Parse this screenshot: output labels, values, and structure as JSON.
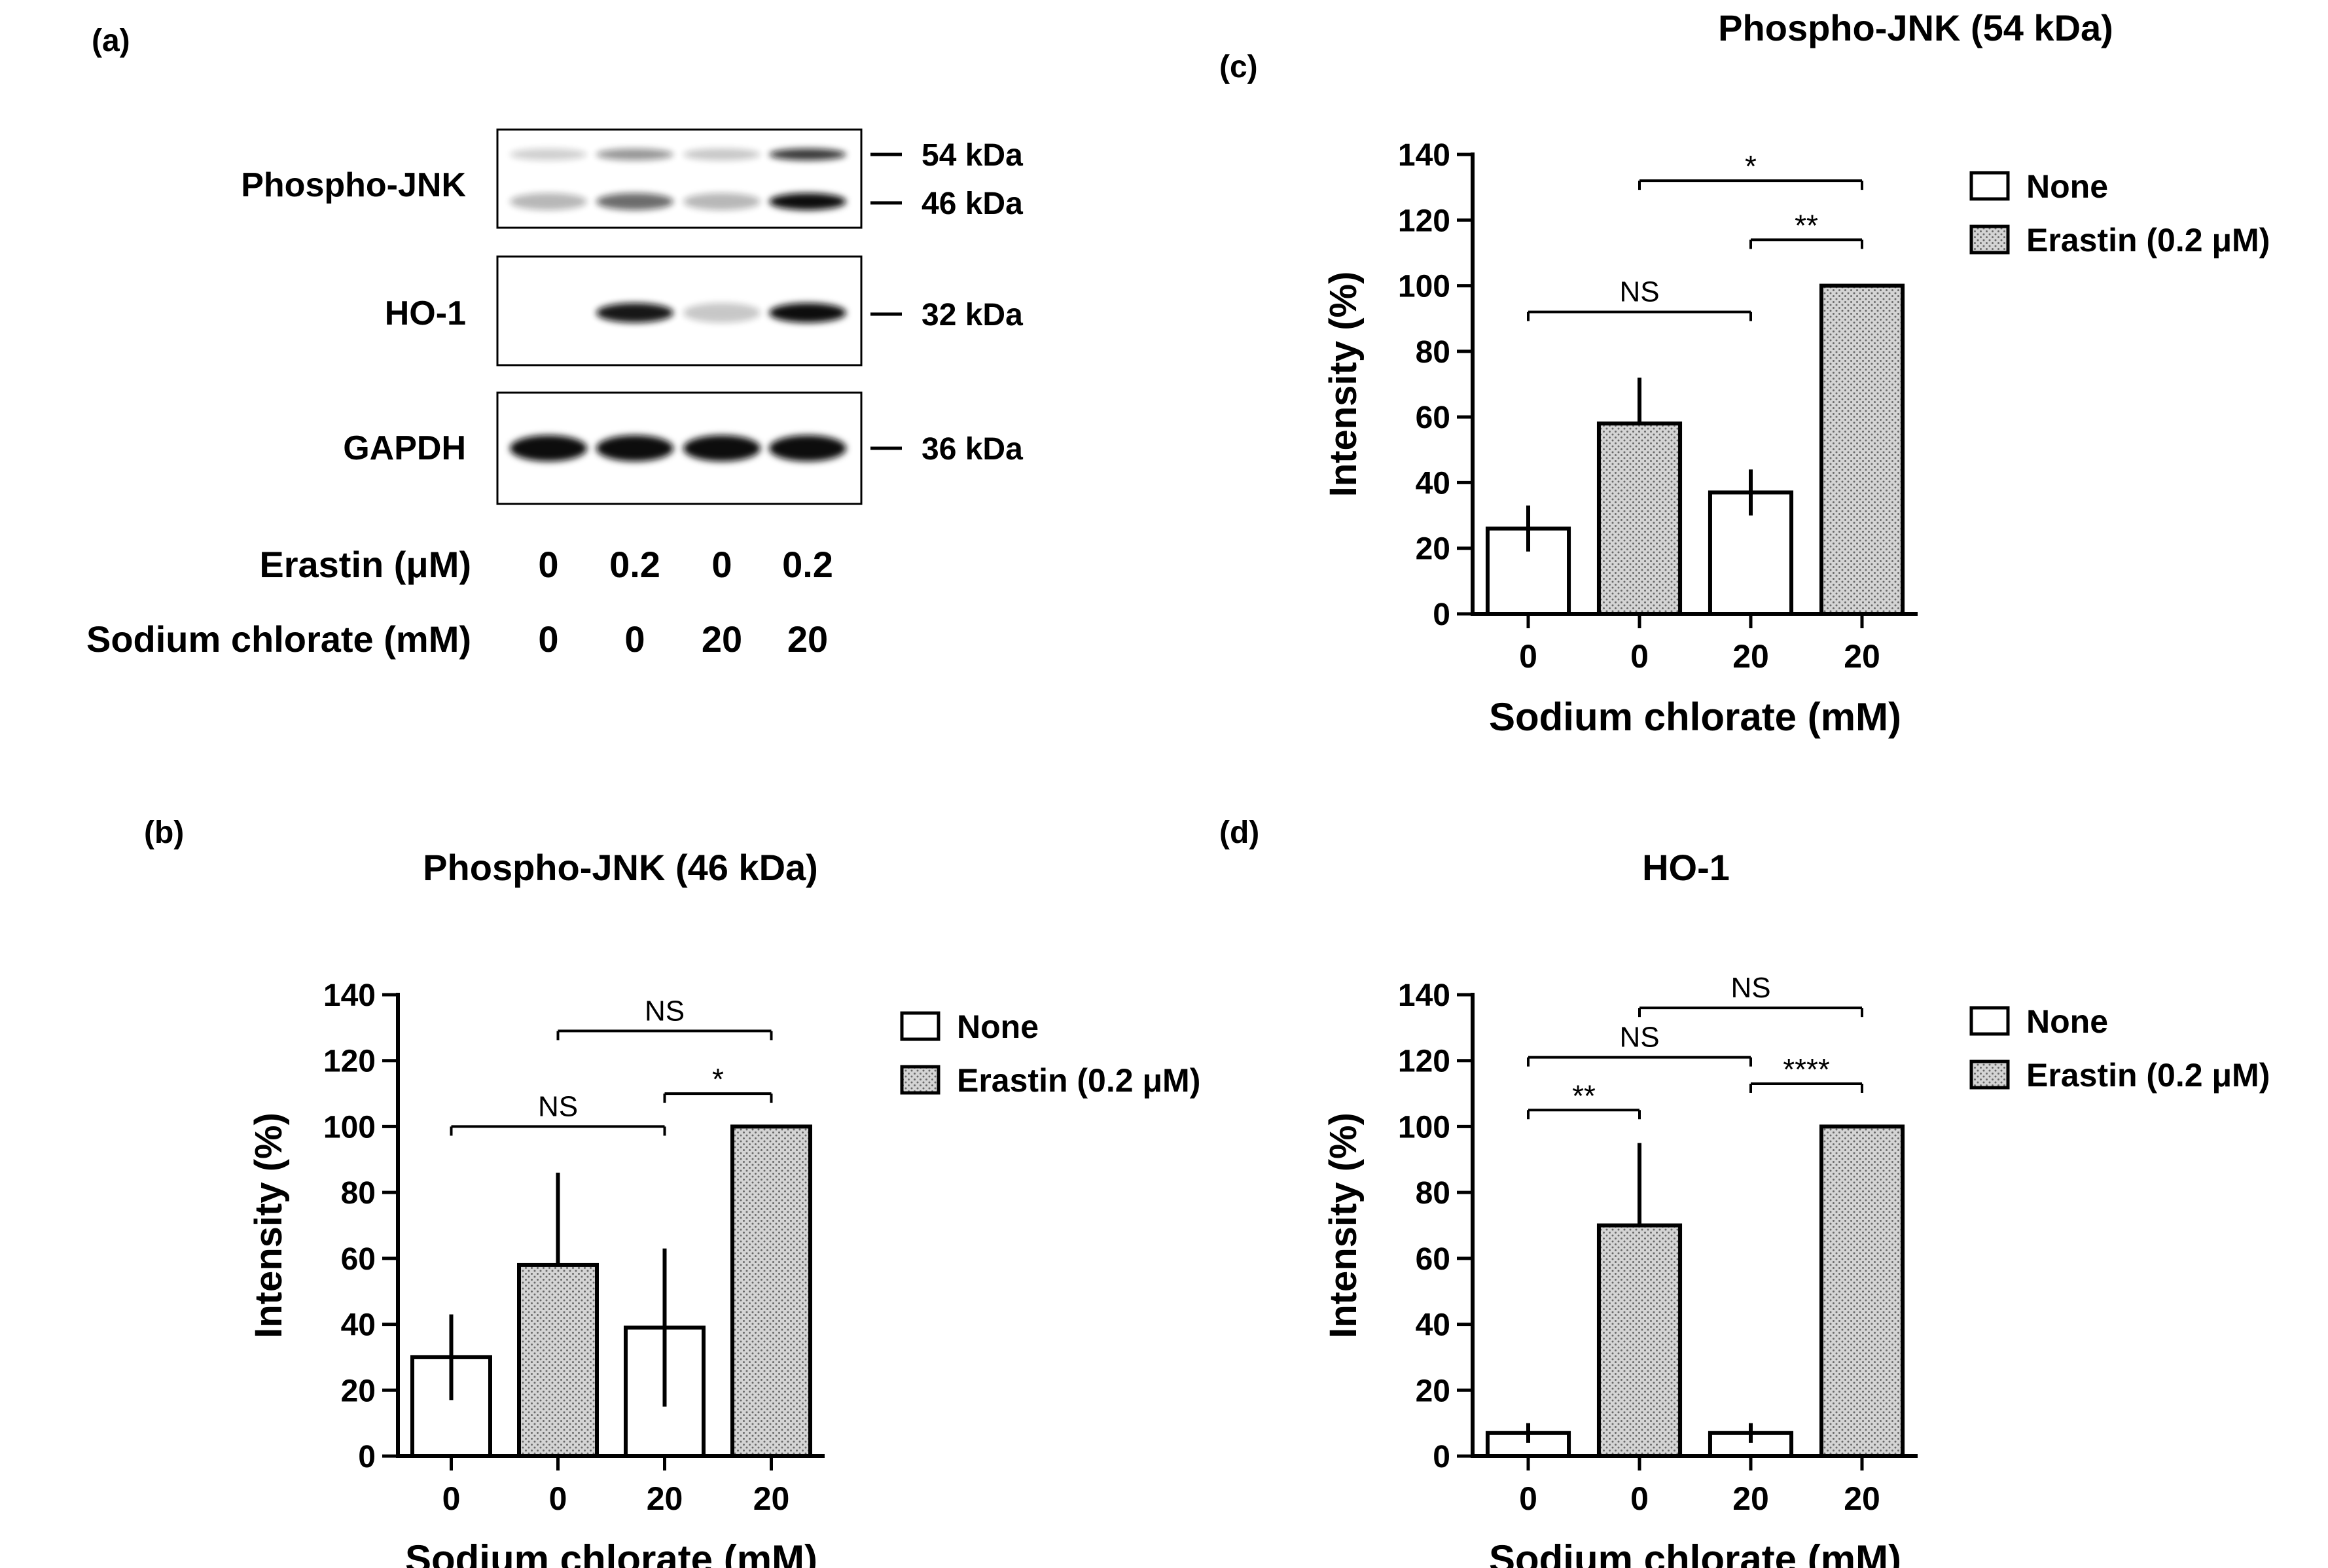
{
  "blot": {
    "label": "(a)",
    "rows": [
      {
        "name": "Phospho-JNK",
        "markers": [
          "54 kDa",
          "46 kDa"
        ]
      },
      {
        "name": "HO-1",
        "markers": [
          "32 kDa"
        ]
      },
      {
        "name": "GAPDH",
        "markers": [
          "36 kDa"
        ]
      }
    ],
    "conditions": [
      {
        "label": "Erastin (μM)",
        "values": [
          "0",
          "0.2",
          "0",
          "0.2"
        ]
      },
      {
        "label": "Sodium chlorate (mM)",
        "values": [
          "0",
          "0",
          "20",
          "20"
        ]
      }
    ],
    "band_intensity": {
      "p54": [
        0.08,
        0.35,
        0.12,
        0.8
      ],
      "p46": [
        0.2,
        0.55,
        0.2,
        1.0
      ],
      "ho1": [
        0,
        0.95,
        0.12,
        1.0
      ],
      "gapdh": [
        1,
        1,
        1,
        1
      ]
    }
  },
  "legend": {
    "none": "None",
    "erastin": "Erastin (0.2 μM)"
  },
  "colors": {
    "none_fill": "#ffffff",
    "erastin_fill": "#d4d4d4",
    "ink": "#000000",
    "band": "#111111"
  },
  "chart_data": [
    {
      "id": "b",
      "panel_label": "(b)",
      "type": "bar",
      "title": "Phospho-JNK (46 kDa)",
      "xlabel": "Sodium chlorate (mM)",
      "ylabel": "Intensity (%)",
      "ylim": [
        0,
        140
      ],
      "yticks": [
        0,
        20,
        40,
        60,
        80,
        100,
        120,
        140
      ],
      "categories": [
        "0",
        "0",
        "20",
        "20"
      ],
      "series_per_bar": [
        "None",
        "Erastin (0.2 μM)",
        "None",
        "Erastin (0.2 μM)"
      ],
      "values": [
        30,
        58,
        39,
        100
      ],
      "errors": [
        13,
        28,
        24,
        0
      ],
      "significance": [
        {
          "from": 1,
          "to": 3,
          "level": 129,
          "label": "NS"
        },
        {
          "from": 2,
          "to": 3,
          "level": 110,
          "label": "*"
        },
        {
          "from": 0,
          "to": 2,
          "level": 100,
          "label": "NS"
        }
      ]
    },
    {
      "id": "c",
      "panel_label": "(c)",
      "type": "bar",
      "title": "Phospho-JNK (54 kDa)",
      "xlabel": "Sodium chlorate (mM)",
      "ylabel": "Intensity (%)",
      "ylim": [
        0,
        140
      ],
      "yticks": [
        0,
        20,
        40,
        60,
        80,
        100,
        120,
        140
      ],
      "categories": [
        "0",
        "0",
        "20",
        "20"
      ],
      "series_per_bar": [
        "None",
        "Erastin (0.2 μM)",
        "None",
        "Erastin (0.2 μM)"
      ],
      "values": [
        26,
        58,
        37,
        100
      ],
      "errors": [
        7,
        14,
        7,
        0
      ],
      "significance": [
        {
          "from": 1,
          "to": 3,
          "level": 132,
          "label": "*"
        },
        {
          "from": 2,
          "to": 3,
          "level": 114,
          "label": "**"
        },
        {
          "from": 0,
          "to": 2,
          "level": 92,
          "label": "NS"
        }
      ]
    },
    {
      "id": "d",
      "panel_label": "(d)",
      "type": "bar",
      "title": "HO-1",
      "xlabel": "Sodium chlorate (mM)",
      "ylabel": "Intensity (%)",
      "ylim": [
        0,
        140
      ],
      "yticks": [
        0,
        20,
        40,
        60,
        80,
        100,
        120,
        140
      ],
      "categories": [
        "0",
        "0",
        "20",
        "20"
      ],
      "series_per_bar": [
        "None",
        "Erastin (0.2 μM)",
        "None",
        "Erastin (0.2 μM)"
      ],
      "values": [
        7,
        70,
        7,
        100
      ],
      "errors": [
        3,
        25,
        3,
        0
      ],
      "significance": [
        {
          "from": 1,
          "to": 3,
          "level": 136,
          "label": "NS"
        },
        {
          "from": 0,
          "to": 2,
          "level": 121,
          "label": "NS"
        },
        {
          "from": 2,
          "to": 3,
          "level": 113,
          "label": "****"
        },
        {
          "from": 0,
          "to": 1,
          "level": 105,
          "label": "**"
        }
      ]
    }
  ]
}
